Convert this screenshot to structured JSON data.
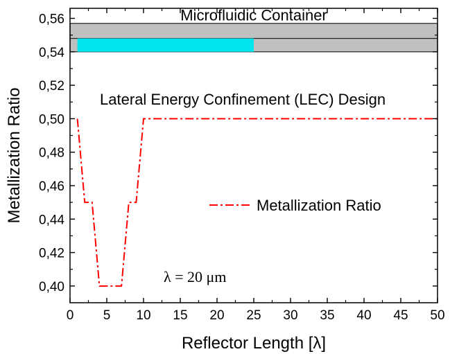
{
  "chart_data": {
    "type": "line",
    "xlabel": "Reflector Length [λ]",
    "ylabel": "Metallization Ratio",
    "xlim": [
      0,
      50
    ],
    "ylim": [
      0.39,
      0.566
    ],
    "xticks": [
      0,
      5,
      10,
      15,
      20,
      25,
      30,
      35,
      40,
      45,
      50
    ],
    "yticks": [
      0.4,
      0.42,
      0.44,
      0.46,
      0.48,
      0.5,
      0.52,
      0.54,
      0.56
    ],
    "xtick_labels": [
      "0",
      "5",
      "10",
      "15",
      "20",
      "25",
      "30",
      "35",
      "40",
      "45",
      "50"
    ],
    "ytick_labels": [
      "0,40",
      "0,42",
      "0,44",
      "0,46",
      "0,48",
      "0,50",
      "0,52",
      "0,54",
      "0,56"
    ],
    "grid": false,
    "legend_position": "right-middle",
    "series": [
      {
        "name": "Metallization Ratio",
        "color": "#ff0000",
        "style": "dash-dot",
        "x": [
          1,
          2,
          3,
          4,
          5,
          6,
          7,
          8,
          9,
          10,
          50
        ],
        "y": [
          0.5,
          0.45,
          0.45,
          0.4,
          0.4,
          0.4,
          0.4,
          0.45,
          0.45,
          0.5,
          0.5
        ]
      }
    ],
    "container_bar": {
      "label": "Microfluidic Container",
      "x": [
        0,
        50
      ],
      "y": [
        0.54,
        0.557
      ],
      "midline_y": 0.548,
      "fill": "#c0c0c0"
    },
    "highlight_bar": {
      "x": [
        1,
        25
      ],
      "y": [
        0.54,
        0.548
      ],
      "fill": "#00e5ee"
    },
    "annotations": [
      {
        "id": "design",
        "text": "Lateral Energy Confinement  (LEC) Design",
        "x": 23.5,
        "y": 0.5085
      },
      {
        "id": "lambda",
        "text": "λ = 20 μm",
        "x": 17,
        "y": 0.4025
      }
    ]
  }
}
